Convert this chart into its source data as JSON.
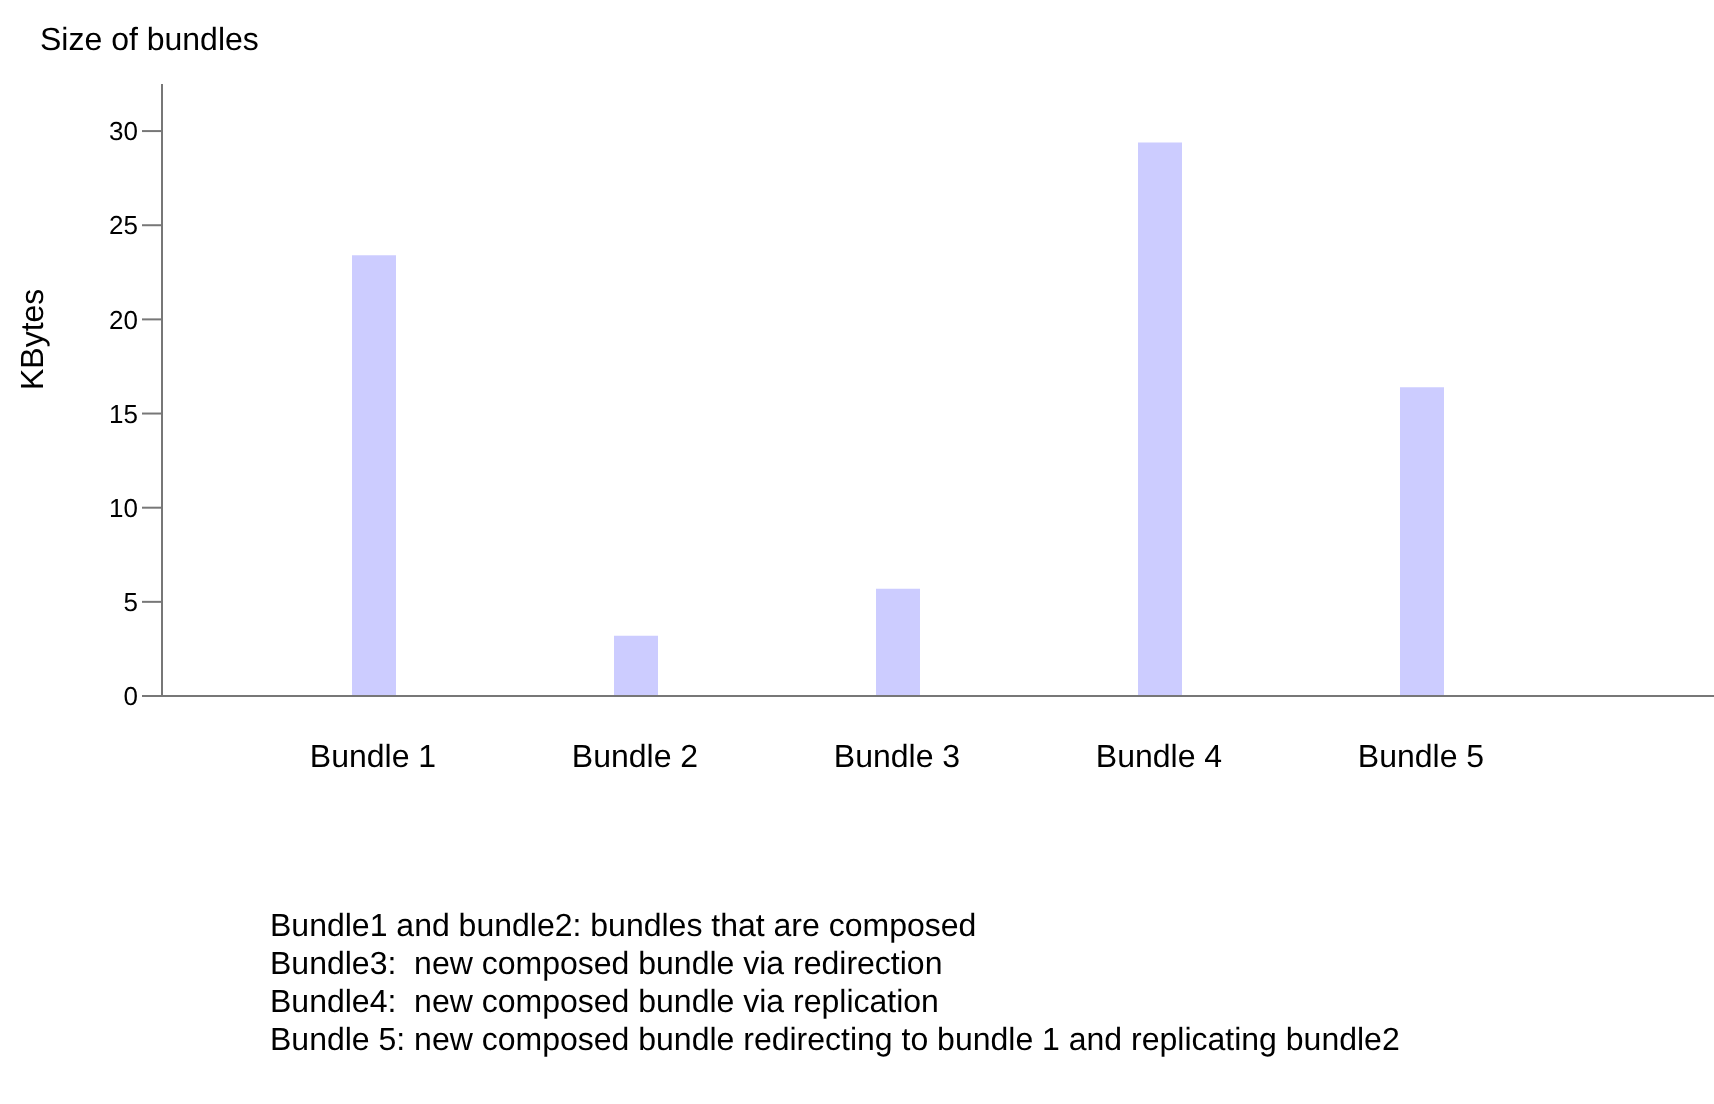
{
  "chart_data": {
    "type": "bar",
    "title": "Size of bundles",
    "ylabel": "KBytes",
    "categories": [
      "Bundle 1",
      "Bundle 2",
      "Bundle 3",
      "Bundle 4",
      "Bundle 5"
    ],
    "values": [
      23.4,
      3.2,
      5.7,
      29.4,
      16.4
    ],
    "color": "#ccccff",
    "ylim": [
      0,
      32.5
    ],
    "yticks": [
      0,
      5,
      10,
      15,
      20,
      25,
      30
    ],
    "grid": false,
    "annotations": [
      "Bundle1 and bundle2: bundles that are composed",
      "Bundle3:  new composed bundle via redirection",
      "Bundle4:  new composed bundle via replication",
      "Bundle 5: new composed bundle redirecting to bundle 1 and replicating bundle2"
    ]
  }
}
